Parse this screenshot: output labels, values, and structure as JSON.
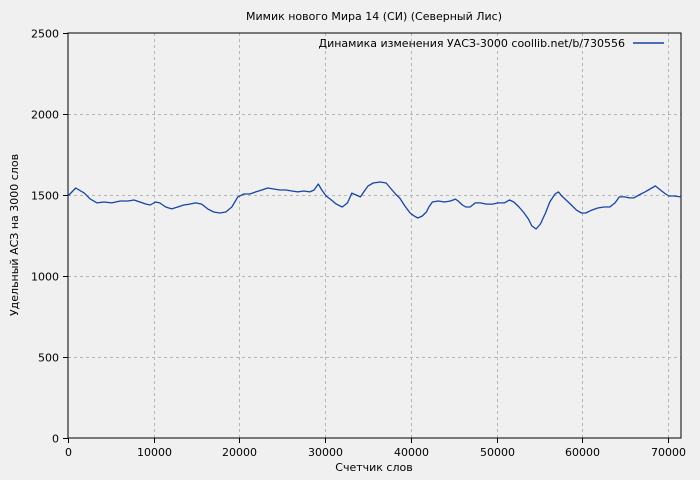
{
  "window": {
    "background_color": "#f0f0f0"
  },
  "chart_data": {
    "type": "line",
    "title": "Мимик нового Мира 14 (СИ) (Северный Лис)",
    "xlabel": "Счетчик слов",
    "ylabel": "Удельный АСЗ на 3000 слов",
    "legend_position": "top-right-inside",
    "grid": "dashed",
    "xlim": [
      0,
      71500
    ],
    "ylim": [
      0,
      2500
    ],
    "xtick_values": [
      0,
      10000,
      20000,
      30000,
      40000,
      50000,
      60000,
      70000
    ],
    "xtick_labels": [
      "0",
      "10000",
      "20000",
      "30000",
      "40000",
      "50000",
      "60000",
      "70000"
    ],
    "ytick_values": [
      0,
      500,
      1000,
      1500,
      2000,
      2500
    ],
    "ytick_labels": [
      "0",
      "500",
      "1000",
      "1500",
      "2000",
      "2500"
    ],
    "colors": {
      "line": "#1644a5",
      "grid": "#b5b5b5",
      "axis": "#000000",
      "background": "#f0f0f0"
    },
    "series": [
      {
        "name": "Динамика изменения УАСЗ-3000 coollib.net/b/730556",
        "color": "#1644a5",
        "x": [
          0,
          900,
          1900,
          2600,
          3400,
          4200,
          5100,
          6100,
          7000,
          7700,
          8400,
          9100,
          9600,
          10200,
          10700,
          11400,
          12100,
          12800,
          13500,
          14200,
          14900,
          15600,
          16300,
          17000,
          17700,
          18400,
          19100,
          19800,
          20500,
          21200,
          21900,
          22600,
          23300,
          24000,
          24700,
          25400,
          26100,
          26800,
          27500,
          28200,
          28700,
          29200,
          29600,
          30100,
          30600,
          31300,
          32000,
          32600,
          33100,
          33600,
          34100,
          34500,
          35000,
          35600,
          36400,
          37100,
          37600,
          38200,
          38700,
          39300,
          39900,
          40400,
          40800,
          41300,
          41800,
          42100,
          42500,
          43200,
          43900,
          44600,
          45200,
          45500,
          46000,
          46400,
          46900,
          47500,
          48100,
          48800,
          49500,
          50200,
          50900,
          51500,
          52000,
          52600,
          53200,
          53700,
          54100,
          54600,
          55100,
          55700,
          56200,
          56800,
          57200,
          57600,
          58100,
          58700,
          59300,
          59900,
          60400,
          61100,
          61800,
          62500,
          63200,
          63800,
          64300,
          64900,
          65500,
          66000,
          66600,
          67300,
          67900,
          68500,
          69100,
          69700,
          70100,
          70700,
          71450
        ],
        "y": [
          1494,
          1543,
          1512,
          1475,
          1451,
          1457,
          1451,
          1463,
          1463,
          1469,
          1457,
          1444,
          1438,
          1457,
          1451,
          1426,
          1414,
          1426,
          1438,
          1444,
          1451,
          1444,
          1414,
          1395,
          1389,
          1395,
          1426,
          1488,
          1506,
          1506,
          1519,
          1531,
          1543,
          1537,
          1531,
          1531,
          1525,
          1519,
          1525,
          1519,
          1531,
          1568,
          1531,
          1494,
          1475,
          1444,
          1426,
          1451,
          1512,
          1500,
          1488,
          1519,
          1556,
          1574,
          1580,
          1574,
          1543,
          1506,
          1481,
          1432,
          1389,
          1370,
          1358,
          1370,
          1395,
          1426,
          1457,
          1463,
          1457,
          1463,
          1475,
          1463,
          1438,
          1426,
          1426,
          1451,
          1451,
          1444,
          1444,
          1451,
          1451,
          1469,
          1457,
          1426,
          1389,
          1352,
          1309,
          1290,
          1321,
          1389,
          1457,
          1506,
          1519,
          1494,
          1469,
          1438,
          1407,
          1389,
          1389,
          1407,
          1420,
          1426,
          1426,
          1451,
          1488,
          1488,
          1482,
          1482,
          1500,
          1519,
          1537,
          1556,
          1531,
          1506,
          1494,
          1494,
          1488
        ]
      }
    ]
  }
}
